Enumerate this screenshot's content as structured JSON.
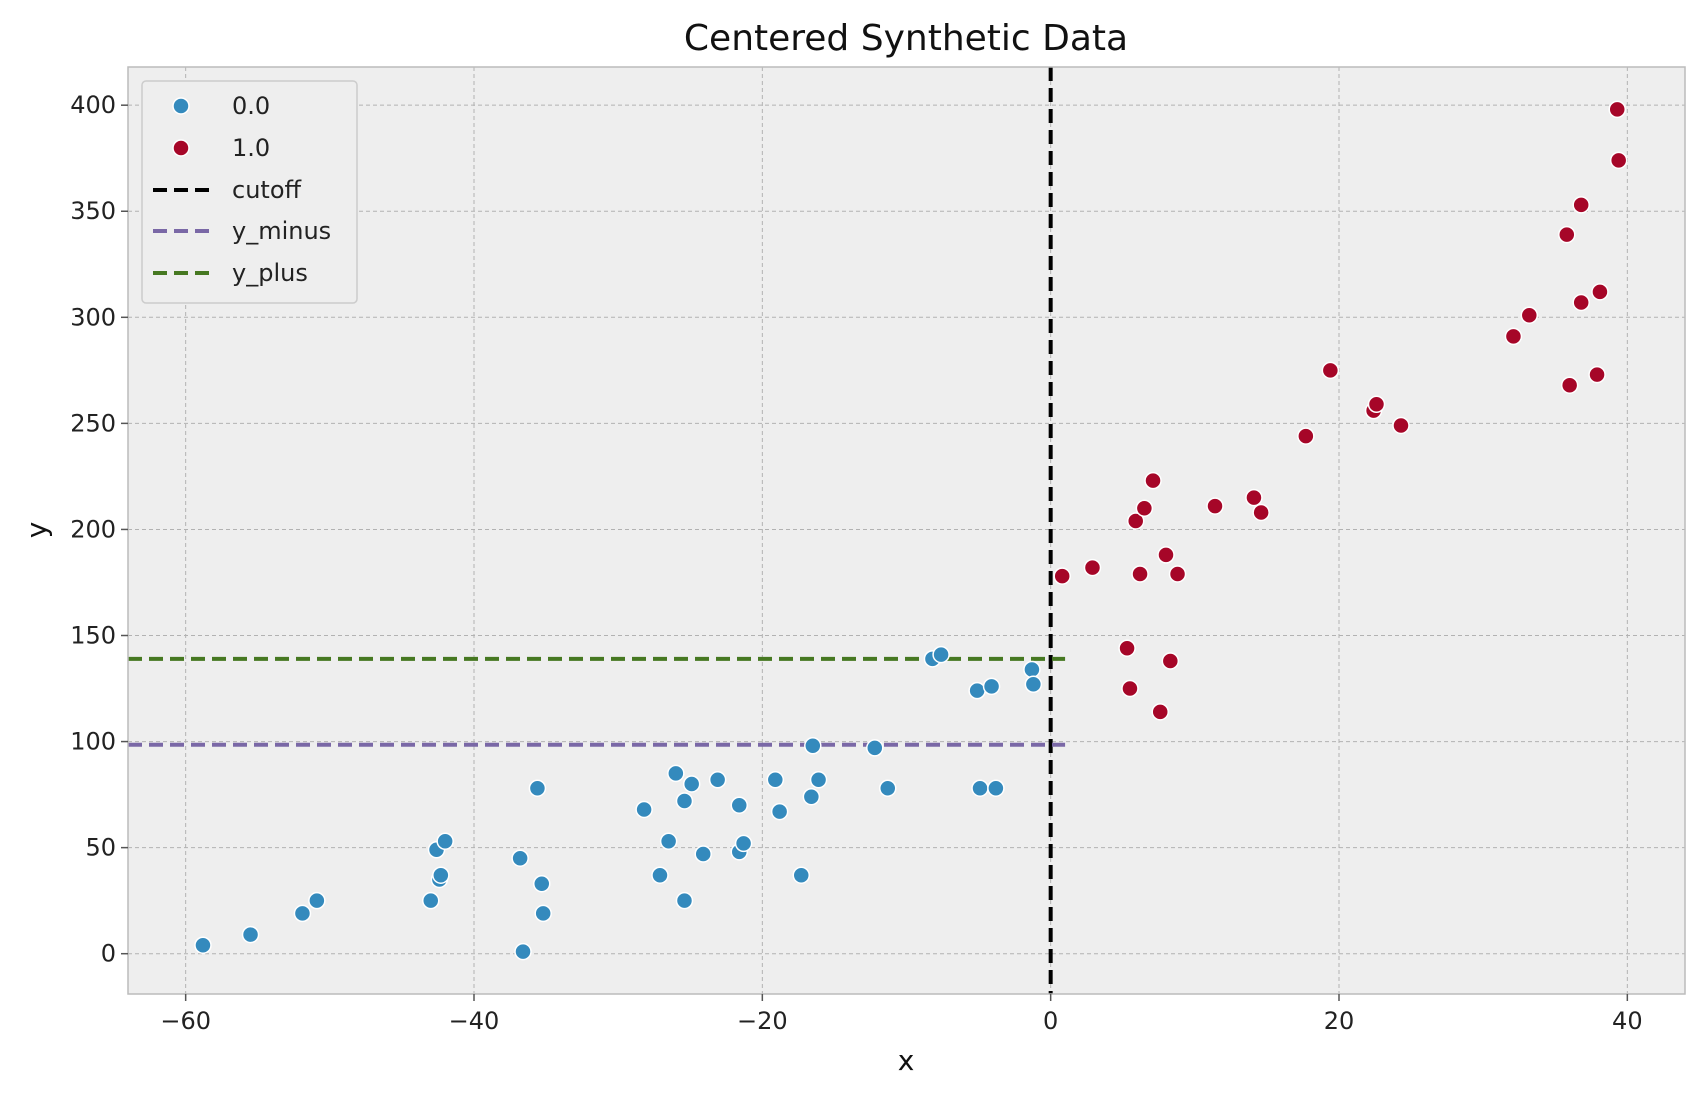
{
  "colors": {
    "background": "#eeeeee",
    "grid": "#b2b2b2",
    "class_0": "#348abd",
    "class_1": "#a60628",
    "cutoff": "#000000",
    "y_minus": "#7a68a6",
    "y_plus": "#467821"
  },
  "chart_data": {
    "type": "scatter",
    "title": "Centered Synthetic Data",
    "xlabel": "x",
    "ylabel": "y",
    "xlim": [
      -64,
      44
    ],
    "ylim": [
      -19,
      418
    ],
    "xticks": [
      -60,
      -40,
      -20,
      0,
      20,
      40
    ],
    "xtick_labels": [
      "−60",
      "−40",
      "−20",
      "0",
      "20",
      "40"
    ],
    "yticks": [
      0,
      50,
      100,
      150,
      200,
      250,
      300,
      350,
      400
    ],
    "ytick_labels": [
      "0",
      "50",
      "100",
      "150",
      "200",
      "250",
      "300",
      "350",
      "400"
    ],
    "grid": true,
    "legend_position": "upper-left",
    "series": [
      {
        "name": "0.0",
        "kind": "scatter",
        "color": "#348abd",
        "points": [
          [
            -58.8,
            4
          ],
          [
            -55.5,
            9
          ],
          [
            -51.9,
            19
          ],
          [
            -50.9,
            25
          ],
          [
            -43,
            25
          ],
          [
            -42.6,
            49
          ],
          [
            -42.4,
            35
          ],
          [
            -42.3,
            37
          ],
          [
            -42,
            53
          ],
          [
            -36.8,
            45
          ],
          [
            -36.6,
            1
          ],
          [
            -35.6,
            78
          ],
          [
            -35.3,
            33
          ],
          [
            -35.2,
            19
          ],
          [
            -28.2,
            68
          ],
          [
            -27.1,
            37
          ],
          [
            -26.5,
            53
          ],
          [
            -26,
            85
          ],
          [
            -25.4,
            25
          ],
          [
            -25.4,
            72
          ],
          [
            -24.9,
            80
          ],
          [
            -24.1,
            47
          ],
          [
            -23.1,
            82
          ],
          [
            -21.6,
            70
          ],
          [
            -21.6,
            48
          ],
          [
            -21.3,
            52
          ],
          [
            -19.1,
            82
          ],
          [
            -18.8,
            67
          ],
          [
            -17.3,
            37
          ],
          [
            -16.6,
            74
          ],
          [
            -16.5,
            98
          ],
          [
            -16.1,
            82
          ],
          [
            -12.2,
            97
          ],
          [
            -11.3,
            78
          ],
          [
            -8.2,
            139
          ],
          [
            -7.6,
            141
          ],
          [
            -5.1,
            124
          ],
          [
            -4.9,
            78
          ],
          [
            -4.1,
            126
          ],
          [
            -3.8,
            78
          ],
          [
            -1.3,
            134
          ],
          [
            -1.2,
            127
          ]
        ]
      },
      {
        "name": "1.0",
        "kind": "scatter",
        "color": "#a60628",
        "points": [
          [
            0.8,
            178
          ],
          [
            2.9,
            182
          ],
          [
            5.3,
            144
          ],
          [
            5.5,
            125
          ],
          [
            5.9,
            204
          ],
          [
            6.2,
            179
          ],
          [
            6.5,
            210
          ],
          [
            7.1,
            223
          ],
          [
            7.6,
            114
          ],
          [
            8.0,
            188
          ],
          [
            8.3,
            138
          ],
          [
            8.8,
            179
          ],
          [
            11.4,
            211
          ],
          [
            14.1,
            215
          ],
          [
            14.6,
            208
          ],
          [
            17.7,
            244
          ],
          [
            19.4,
            275
          ],
          [
            22.4,
            256
          ],
          [
            22.6,
            259
          ],
          [
            24.3,
            249
          ],
          [
            32.1,
            291
          ],
          [
            33.2,
            301
          ],
          [
            35.8,
            339
          ],
          [
            36.0,
            268
          ],
          [
            36.8,
            353
          ],
          [
            36.8,
            307
          ],
          [
            37.9,
            273
          ],
          [
            38.1,
            312
          ],
          [
            39.3,
            398
          ],
          [
            39.4,
            374
          ]
        ]
      },
      {
        "name": "cutoff",
        "kind": "vline",
        "x": 0,
        "color": "#000000"
      },
      {
        "name": "y_minus",
        "kind": "hline",
        "y": 98.5,
        "xmin": -64,
        "xmax": 1,
        "color": "#7a68a6"
      },
      {
        "name": "y_plus",
        "kind": "hline",
        "y": 139,
        "xmin": -64,
        "xmax": 1,
        "color": "#467821"
      }
    ]
  }
}
